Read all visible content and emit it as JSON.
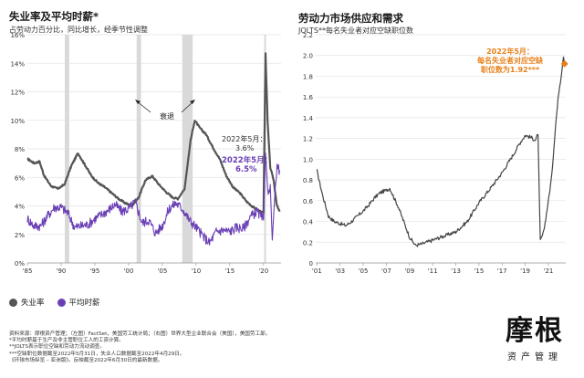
{
  "left": {
    "title": "失业率及平均时薪*",
    "subtitle": "占劳动力百分比，同比增长，经季节性调整",
    "recession_label": "衰退",
    "annotation_date": "2022年5月：",
    "annotation_unemp": "3.6%",
    "annotation_wage": "6.5%",
    "legend": [
      {
        "label": "失业率",
        "color": "#555555"
      },
      {
        "label": "平均时薪",
        "color": "#6a3fb5"
      }
    ]
  },
  "right": {
    "title": "劳动力市场供应和需求",
    "subtitle": "JOLTS**每名失业者对应空缺职位数",
    "annotation_l1": "2022年5月：",
    "annotation_l2": "每名失业者对应空缺",
    "annotation_l3": "职位数为1.92***"
  },
  "footnotes": [
    "资料来源：摩根资产管理；（左图）FactSet，美国劳工统计局；（右图）世界大型企业联合会（美国），美国劳工部。",
    "*平均时薪基于生产及非主管职位工人的工资计算。",
    "**JOLTS表示职位空缺和劳动力流动调查。",
    "***空缺职位数据截至2022年5月31日，失业人口数据截至2022年4月29日。",
    "《环球市场纵览 – 亚洲版》。反映截至2022年6月30日的最新数据。"
  ],
  "logo": {
    "main": "摩根",
    "sub": "资产管理"
  },
  "colors": {
    "unemployment": "#555555",
    "wages": "#6a3fb5",
    "jolts": "#444444",
    "accent": "#e8801a",
    "recession": "#d9d9d9"
  },
  "chart_data": [
    {
      "type": "line",
      "title": "失业率及平均时薪*",
      "xlabel": "",
      "ylabel": "",
      "xlim": [
        1985,
        2022.6
      ],
      "ylim": [
        0,
        16
      ],
      "y_ticks": [
        0,
        2,
        4,
        6,
        8,
        10,
        12,
        14,
        16
      ],
      "y_tick_labels": [
        "0%",
        "2%",
        "4%",
        "6%",
        "8%",
        "10%",
        "12%",
        "14%",
        "16%"
      ],
      "x_ticks": [
        1985,
        1990,
        1995,
        2000,
        2005,
        2010,
        2015,
        2020
      ],
      "x_tick_labels": [
        "'85",
        "'90",
        "'95",
        "'00",
        "'05",
        "'10",
        "'15",
        "'20"
      ],
      "recessions": [
        [
          1990.55,
          1991.2
        ],
        [
          2001.2,
          2001.85
        ],
        [
          2007.95,
          2009.5
        ],
        [
          2020.1,
          2020.35
        ]
      ],
      "series": [
        {
          "name": "失业率",
          "color": "#555555",
          "points": [
            [
              1985,
              7.3
            ],
            [
              1986,
              7.0
            ],
            [
              1986.8,
              7.1
            ],
            [
              1987.5,
              6.1
            ],
            [
              1988.5,
              5.4
            ],
            [
              1989.5,
              5.2
            ],
            [
              1990.5,
              5.5
            ],
            [
              1991.5,
              6.8
            ],
            [
              1992.5,
              7.7
            ],
            [
              1993.5,
              6.9
            ],
            [
              1994.5,
              6.1
            ],
            [
              1995.5,
              5.6
            ],
            [
              1996.5,
              5.3
            ],
            [
              1997.5,
              4.9
            ],
            [
              1998.5,
              4.5
            ],
            [
              1999.5,
              4.2
            ],
            [
              2000.5,
              4.0
            ],
            [
              2001.5,
              4.6
            ],
            [
              2002.5,
              5.8
            ],
            [
              2003.5,
              6.1
            ],
            [
              2004.5,
              5.5
            ],
            [
              2005.5,
              5.0
            ],
            [
              2006.5,
              4.6
            ],
            [
              2007.3,
              4.5
            ],
            [
              2008.3,
              5.2
            ],
            [
              2009.2,
              8.6
            ],
            [
              2009.8,
              10.0
            ],
            [
              2010.5,
              9.5
            ],
            [
              2011.5,
              9.0
            ],
            [
              2012.5,
              8.1
            ],
            [
              2013.5,
              7.3
            ],
            [
              2014.5,
              6.1
            ],
            [
              2015.5,
              5.3
            ],
            [
              2016.5,
              4.9
            ],
            [
              2017.5,
              4.3
            ],
            [
              2018.5,
              3.9
            ],
            [
              2019.5,
              3.6
            ],
            [
              2020.0,
              3.5
            ],
            [
              2020.3,
              14.7
            ],
            [
              2020.6,
              10.0
            ],
            [
              2021.0,
              6.7
            ],
            [
              2021.5,
              5.8
            ],
            [
              2022.0,
              4.0
            ],
            [
              2022.4,
              3.6
            ]
          ]
        },
        {
          "name": "平均时薪",
          "color": "#6a3fb5",
          "points": [
            [
              1985,
              3.1
            ],
            [
              1986,
              2.6
            ],
            [
              1987,
              2.6
            ],
            [
              1988,
              3.3
            ],
            [
              1989,
              3.9
            ],
            [
              1990,
              3.9
            ],
            [
              1991,
              3.5
            ],
            [
              1992,
              2.5
            ],
            [
              1993,
              2.6
            ],
            [
              1994,
              2.7
            ],
            [
              1995,
              3.1
            ],
            [
              1996,
              3.4
            ],
            [
              1997,
              3.7
            ],
            [
              1998,
              4.1
            ],
            [
              1999,
              3.6
            ],
            [
              2000,
              3.8
            ],
            [
              2001,
              4.3
            ],
            [
              2002,
              2.8
            ],
            [
              2003,
              3.0
            ],
            [
              2004,
              2.1
            ],
            [
              2005,
              2.6
            ],
            [
              2006,
              3.8
            ],
            [
              2007,
              4.2
            ],
            [
              2008,
              3.8
            ],
            [
              2009,
              3.0
            ],
            [
              2010,
              2.5
            ],
            [
              2011,
              1.9
            ],
            [
              2012,
              1.4
            ],
            [
              2013,
              2.2
            ],
            [
              2014,
              2.3
            ],
            [
              2015,
              2.2
            ],
            [
              2016,
              2.5
            ],
            [
              2017,
              2.4
            ],
            [
              2018,
              3.2
            ],
            [
              2019,
              3.6
            ],
            [
              2020.0,
              3.0
            ],
            [
              2020.3,
              7.7
            ],
            [
              2020.7,
              4.5
            ],
            [
              2021.0,
              5.5
            ],
            [
              2021.3,
              1.6
            ],
            [
              2021.8,
              5.8
            ],
            [
              2022.0,
              6.7
            ],
            [
              2022.4,
              6.5
            ]
          ]
        }
      ]
    },
    {
      "type": "line",
      "title": "劳动力市场供应和需求",
      "xlabel": "",
      "ylabel": "",
      "xlim": [
        2000.9,
        2022.5
      ],
      "ylim": [
        0,
        2.2
      ],
      "y_ticks": [
        0,
        0.2,
        0.4,
        0.6,
        0.8,
        1.0,
        1.2,
        1.4,
        1.6,
        1.8,
        2.0,
        2.2
      ],
      "y_tick_labels": [
        "0",
        "0.2",
        "0.4",
        "0.6",
        "0.8",
        "1.0",
        "1.2",
        "1.4",
        "1.6",
        "1.8",
        "2.0",
        "2.2"
      ],
      "x_ticks": [
        2001,
        2003,
        2005,
        2007,
        2009,
        2011,
        2013,
        2015,
        2017,
        2019,
        2021
      ],
      "x_tick_labels": [
        "'01",
        "'03",
        "'05",
        "'07",
        "'09",
        "'11",
        "'13",
        "'15",
        "'17",
        "'19",
        "'21"
      ],
      "series": [
        {
          "name": "JOLTS",
          "color": "#444444",
          "points": [
            [
              2001.0,
              0.89
            ],
            [
              2001.5,
              0.65
            ],
            [
              2002.0,
              0.45
            ],
            [
              2002.5,
              0.4
            ],
            [
              2003.0,
              0.38
            ],
            [
              2003.5,
              0.36
            ],
            [
              2004.0,
              0.4
            ],
            [
              2004.5,
              0.45
            ],
            [
              2005.0,
              0.5
            ],
            [
              2005.5,
              0.56
            ],
            [
              2006.0,
              0.63
            ],
            [
              2006.5,
              0.68
            ],
            [
              2007.0,
              0.7
            ],
            [
              2007.3,
              0.72
            ],
            [
              2007.7,
              0.62
            ],
            [
              2008.0,
              0.55
            ],
            [
              2008.5,
              0.4
            ],
            [
              2009.0,
              0.25
            ],
            [
              2009.5,
              0.17
            ],
            [
              2010.0,
              0.18
            ],
            [
              2010.5,
              0.2
            ],
            [
              2011.0,
              0.22
            ],
            [
              2012.0,
              0.26
            ],
            [
              2013.0,
              0.3
            ],
            [
              2014.0,
              0.4
            ],
            [
              2015.0,
              0.58
            ],
            [
              2016.0,
              0.72
            ],
            [
              2017.0,
              0.87
            ],
            [
              2018.0,
              1.05
            ],
            [
              2018.5,
              1.15
            ],
            [
              2019.0,
              1.23
            ],
            [
              2019.5,
              1.21
            ],
            [
              2019.9,
              1.18
            ],
            [
              2020.1,
              1.25
            ],
            [
              2020.3,
              0.21
            ],
            [
              2020.6,
              0.3
            ],
            [
              2021.0,
              0.6
            ],
            [
              2021.3,
              0.85
            ],
            [
              2021.6,
              1.3
            ],
            [
              2021.9,
              1.65
            ],
            [
              2022.1,
              1.8
            ],
            [
              2022.3,
              2.0
            ],
            [
              2022.4,
              1.92
            ]
          ]
        }
      ],
      "highlight": {
        "x": 2022.4,
        "y": 1.92,
        "label": "1.92"
      }
    }
  ]
}
